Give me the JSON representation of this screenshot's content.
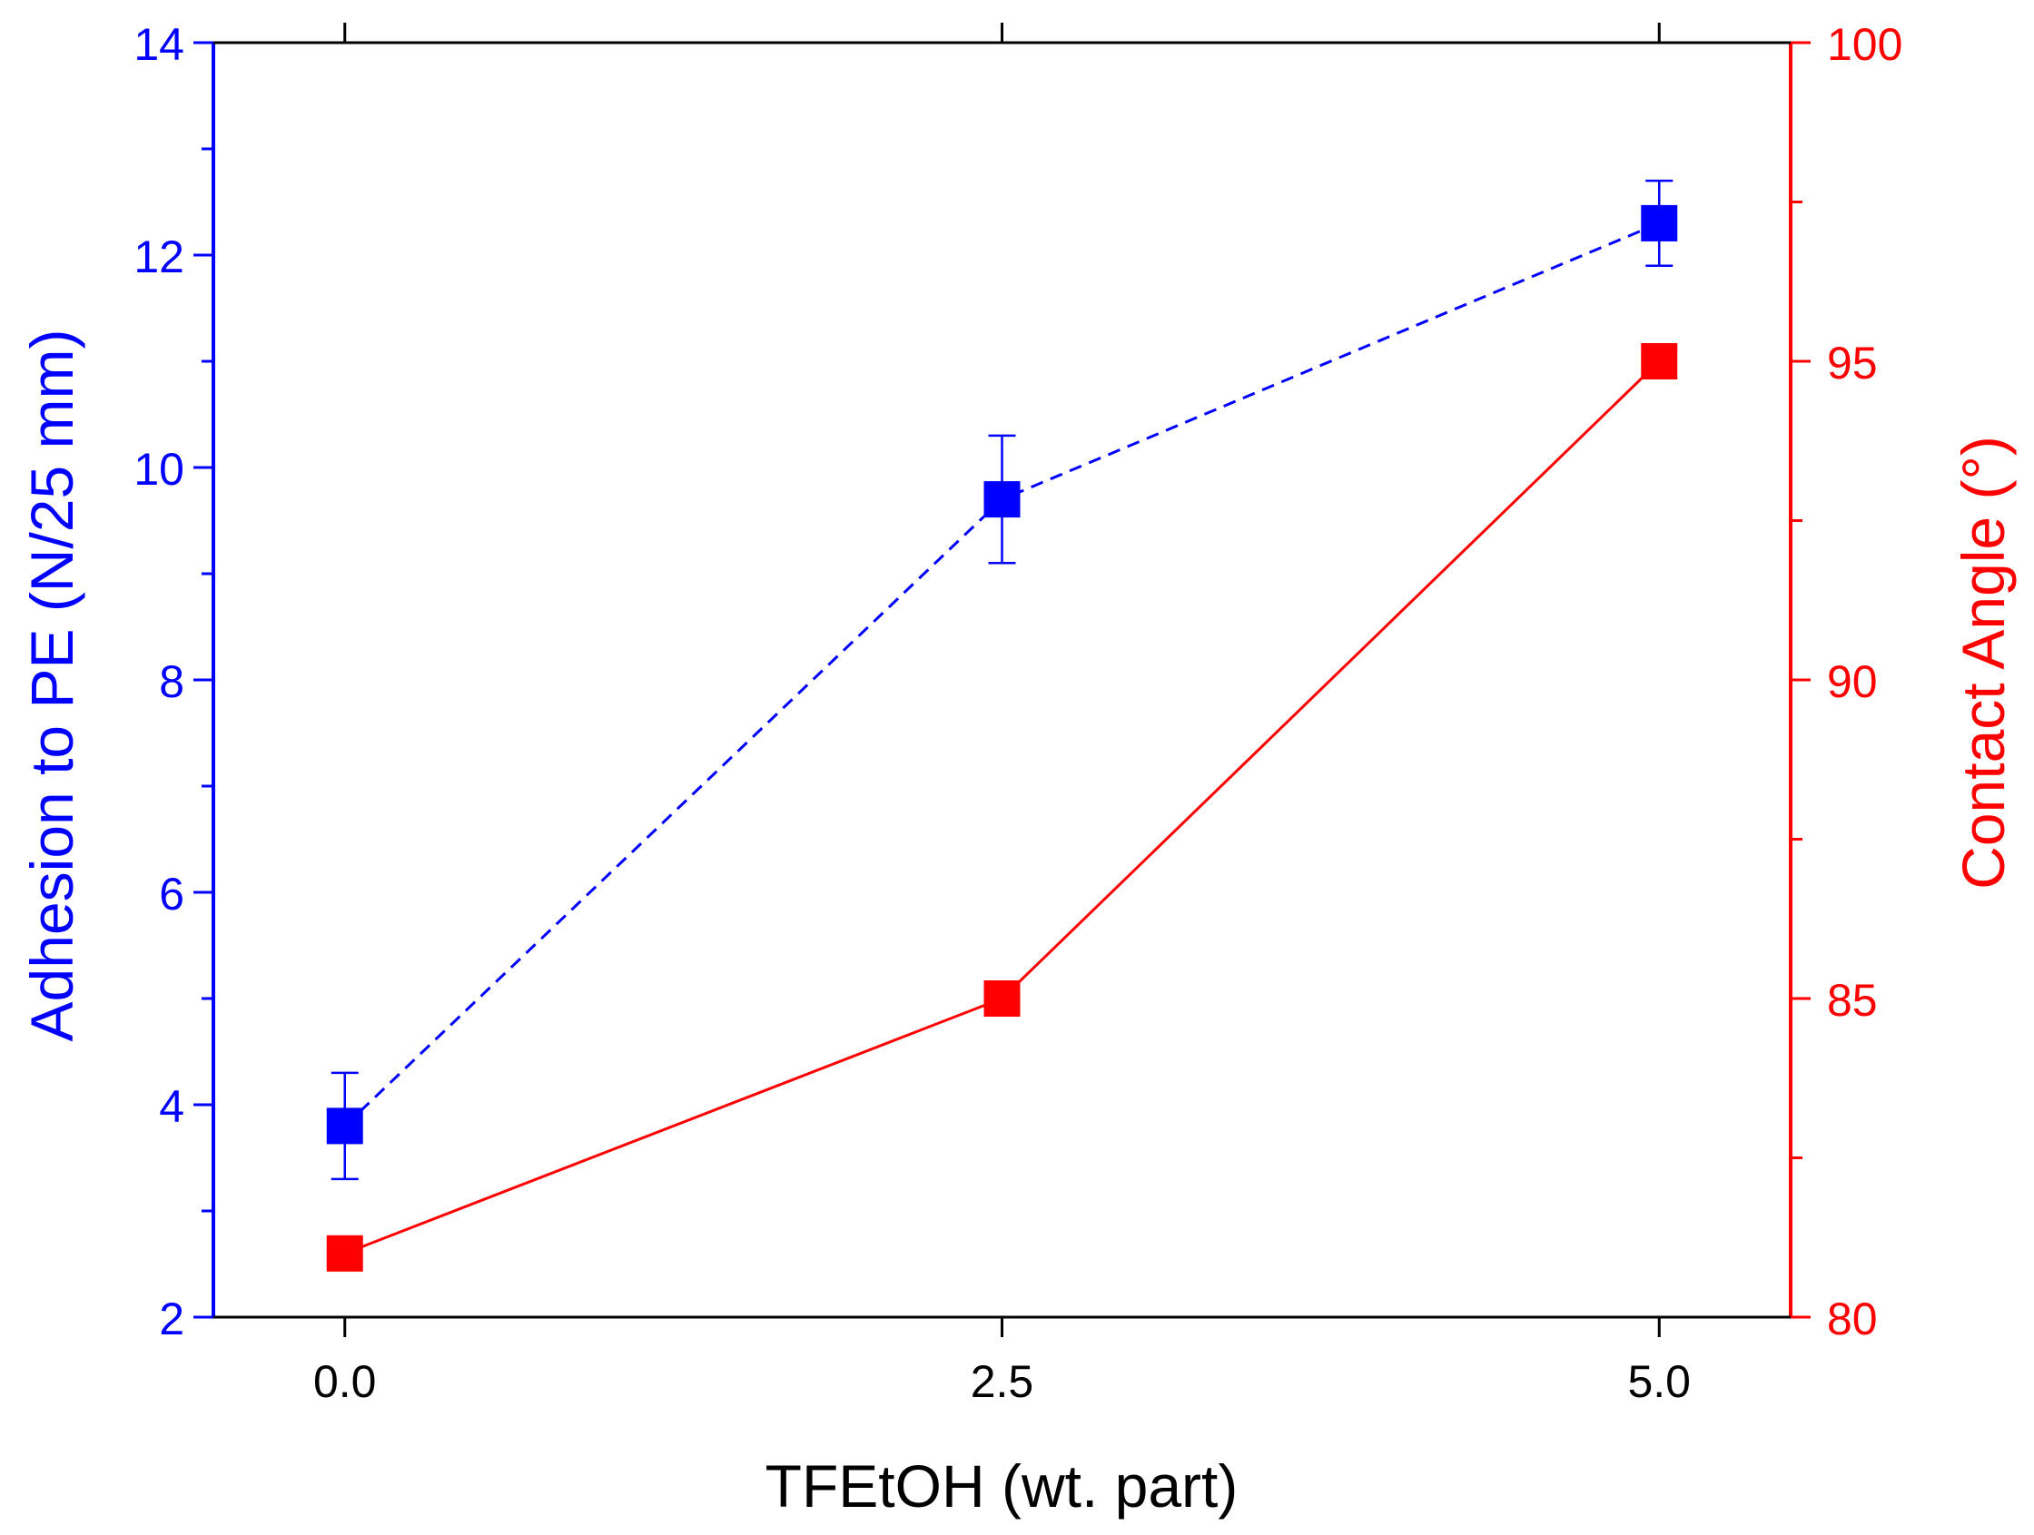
{
  "chart_data": {
    "type": "line",
    "x": [
      0.0,
      2.5,
      5.0
    ],
    "x_tick_labels": [
      "0.0",
      "2.5",
      "5.0"
    ],
    "xlabel": "TFEtOH (wt. part)",
    "xlim": [
      -0.5,
      5.5
    ],
    "left_axis": {
      "label": "Adhesion to PE (N/25 mm)",
      "ylim": [
        2,
        14
      ],
      "ticks": [
        2,
        4,
        6,
        8,
        10,
        12,
        14
      ],
      "tick_labels": [
        "2",
        "4",
        "6",
        "8",
        "10",
        "12",
        "14"
      ],
      "color": "#0000ff"
    },
    "right_axis": {
      "label": "Contact Angle (°)",
      "ylim": [
        80,
        100
      ],
      "ticks": [
        80,
        85,
        90,
        95,
        100
      ],
      "tick_labels": [
        "80",
        "85",
        "90",
        "95",
        "100"
      ],
      "color": "#ff0000"
    },
    "series": [
      {
        "name": "Adhesion to PE",
        "axis": "left",
        "values": [
          3.8,
          9.7,
          12.3
        ],
        "errors": [
          0.5,
          0.6,
          0.4
        ],
        "line_style": "dashed",
        "marker": "square",
        "color": "#0000ff"
      },
      {
        "name": "Contact Angle",
        "axis": "right",
        "values": [
          81,
          85,
          95
        ],
        "line_style": "solid",
        "marker": "square",
        "color": "#ff0000"
      }
    ]
  }
}
